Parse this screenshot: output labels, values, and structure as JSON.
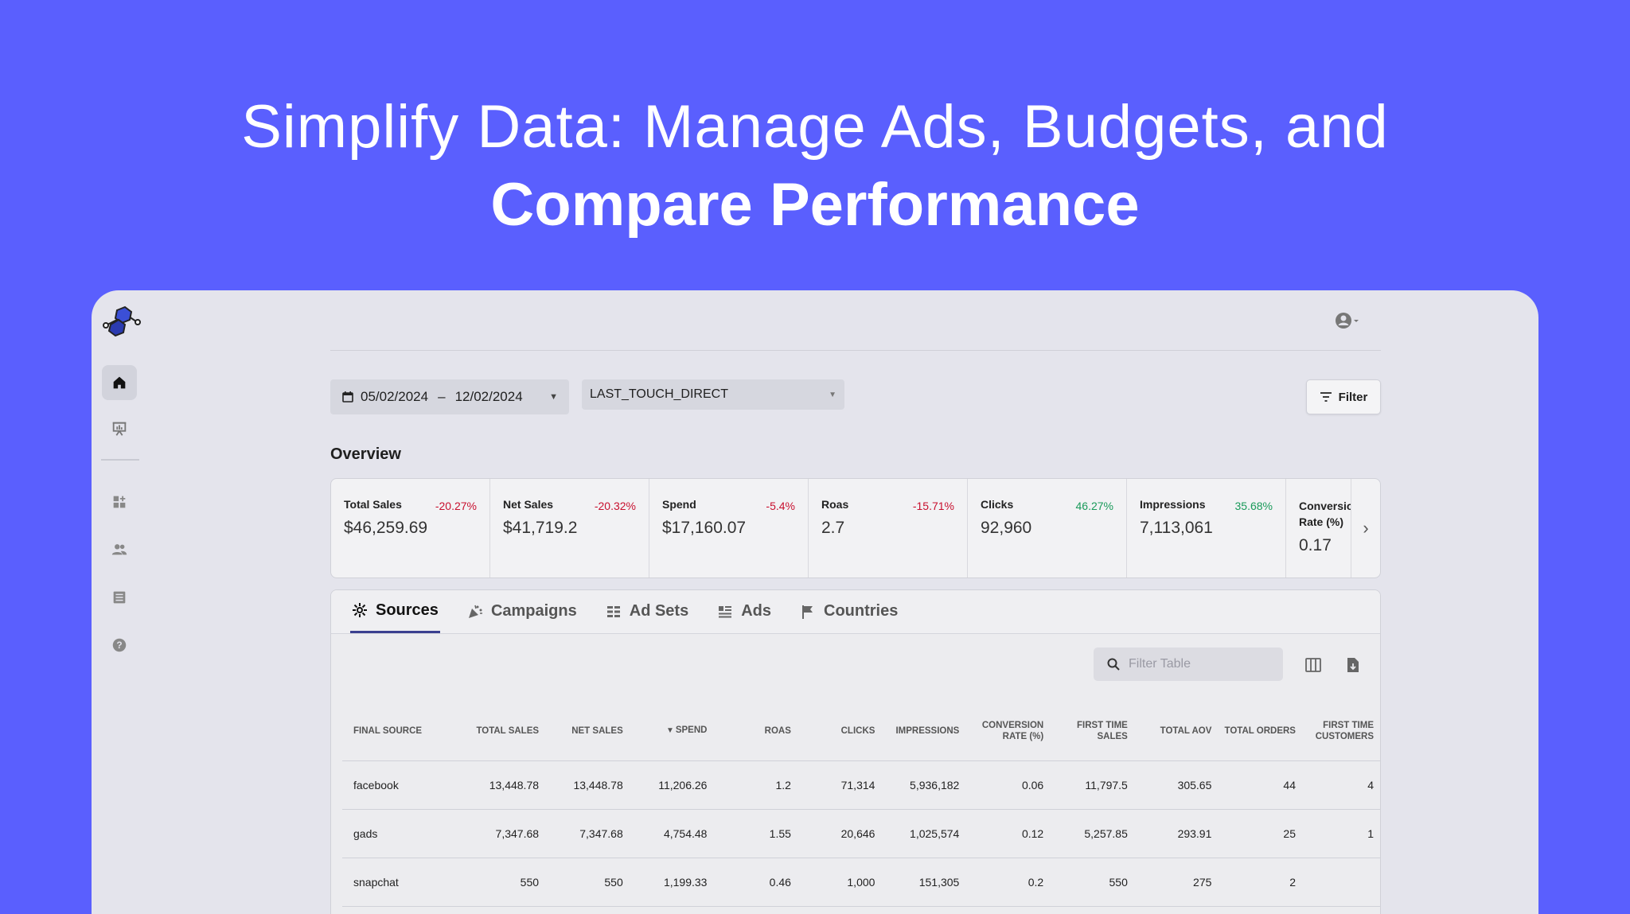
{
  "hero": {
    "line1": "Simplify Data: Manage Ads, Budgets, and",
    "line2": "Compare Performance"
  },
  "toolbar": {
    "date_start": "05/02/2024",
    "date_sep": "–",
    "date_end": "12/02/2024",
    "attribution_model": "LAST_TOUCH_DIRECT",
    "filter_label": "Filter"
  },
  "overview": {
    "title": "Overview",
    "kpis": [
      {
        "label": "Total Sales",
        "change": "-20.27%",
        "trend": "neg",
        "value": "$46,259.69"
      },
      {
        "label": "Net Sales",
        "change": "-20.32%",
        "trend": "neg",
        "value": "$41,719.2"
      },
      {
        "label": "Spend",
        "change": "-5.4%",
        "trend": "neg",
        "value": "$17,160.07"
      },
      {
        "label": "Roas",
        "change": "-15.71%",
        "trend": "neg",
        "value": "2.7"
      },
      {
        "label": "Clicks",
        "change": "46.27%",
        "trend": "pos",
        "value": "92,960"
      },
      {
        "label": "Impressions",
        "change": "35.68%",
        "trend": "pos",
        "value": "7,113,061"
      },
      {
        "label": "Conversion Rate (%)",
        "change": "",
        "trend": "",
        "value": "0.17"
      }
    ]
  },
  "tabs": [
    {
      "label": "Sources",
      "icon": "sources-icon",
      "active": true
    },
    {
      "label": "Campaigns",
      "icon": "campaigns-icon",
      "active": false
    },
    {
      "label": "Ad Sets",
      "icon": "ad-sets-icon",
      "active": false
    },
    {
      "label": "Ads",
      "icon": "ads-icon",
      "active": false
    },
    {
      "label": "Countries",
      "icon": "countries-icon",
      "active": false
    }
  ],
  "table_tools": {
    "filter_placeholder": "Filter Table"
  },
  "table": {
    "columns": [
      "Final Source",
      "Total Sales",
      "Net Sales",
      "Spend",
      "Roas",
      "Clicks",
      "Impressions",
      "Conversion Rate (%)",
      "First Time Sales",
      "Total AOV",
      "Total Orders",
      "First Time Customers"
    ],
    "sorted_column": "Spend",
    "sort_arrow": "▼",
    "rows": [
      [
        "facebook",
        "13,448.78",
        "13,448.78",
        "11,206.26",
        "1.2",
        "71,314",
        "5,936,182",
        "0.06",
        "11,797.5",
        "305.65",
        "44",
        "4"
      ],
      [
        "gads",
        "7,347.68",
        "7,347.68",
        "4,754.48",
        "1.55",
        "20,646",
        "1,025,574",
        "0.12",
        "5,257.85",
        "293.91",
        "25",
        "1"
      ],
      [
        "snapchat",
        "550",
        "550",
        "1,199.33",
        "0.46",
        "1,000",
        "151,305",
        "0.2",
        "550",
        "275",
        "2",
        ""
      ]
    ]
  }
}
